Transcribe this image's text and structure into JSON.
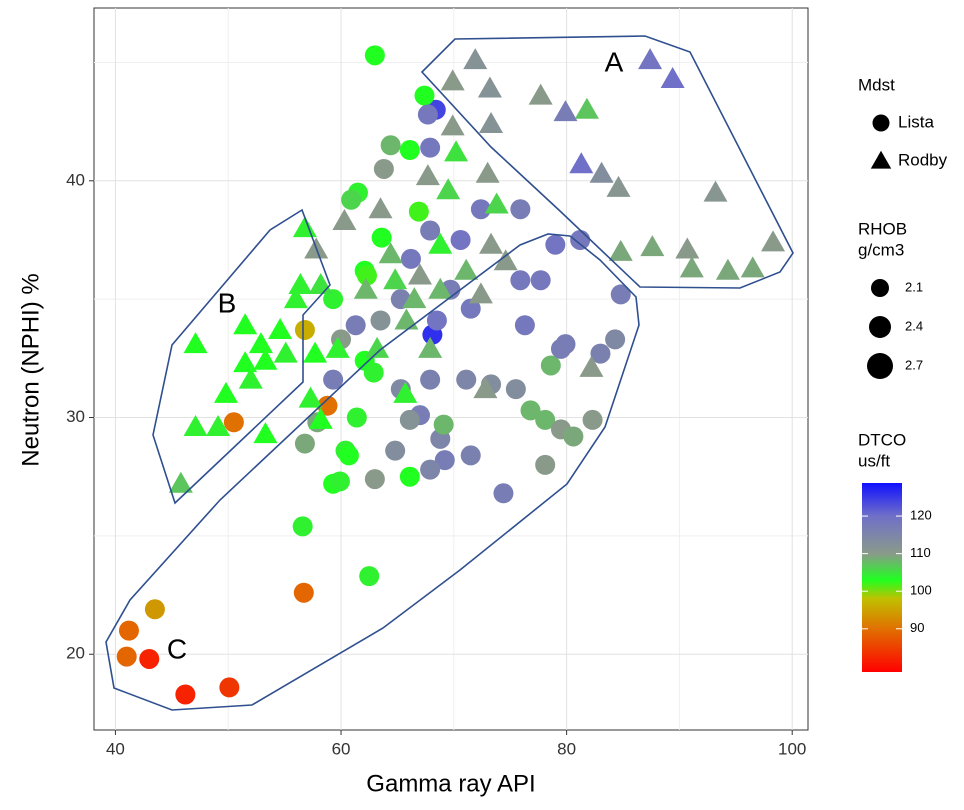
{
  "chart_data": {
    "type": "scatter",
    "x_label": "Gamma ray API",
    "y_label": "Neutron (NPHI) %",
    "xlim": [
      38.1,
      101.4
    ],
    "ylim": [
      16.8,
      47.3
    ],
    "xticks": [
      40,
      60,
      80,
      100
    ],
    "yticks": [
      20,
      30,
      40
    ],
    "x_minor_grid": [
      50,
      70,
      90
    ],
    "y_minor_grid": [
      25,
      35,
      45
    ],
    "grid": true,
    "shape_legend_title": "Mdst",
    "size_legend": {
      "title": [
        "RHOB",
        "g/cm3"
      ],
      "values": [
        2.1,
        2.4,
        2.7
      ]
    },
    "colorbar": {
      "title": [
        "DTCO",
        "us/ft"
      ],
      "lim": [
        78.5,
        128.8
      ],
      "ticks": [
        90,
        100,
        110,
        120
      ],
      "stops": [
        [
          78.5,
          "#ff0000"
        ],
        [
          90,
          "#e07000"
        ],
        [
          98,
          "#c0c000"
        ],
        [
          103,
          "#20ff20"
        ],
        [
          110,
          "#8a9a8a"
        ],
        [
          120,
          "#7070c8"
        ],
        [
          128.8,
          "#1010ff"
        ]
      ]
    },
    "annotations": [
      "A",
      "B",
      "C"
    ],
    "series": [
      {
        "name": "Lista",
        "shape": "circle",
        "x": [
          63.0,
          68.4,
          67.4,
          67.7,
          66.1,
          67.9,
          64.4,
          63.8,
          61.5,
          60.9,
          66.9,
          63.6,
          62.1,
          62.3,
          59.3,
          61.3,
          63.5,
          68.1,
          68.5,
          60.0,
          62.1,
          62.9,
          59.3,
          56.8,
          58.8,
          57.9,
          61.4,
          60.4,
          60.7,
          59.3,
          59.9,
          63.0,
          66.1,
          56.8,
          56.6,
          56.7,
          62.5,
          50.5,
          43.5,
          41.2,
          41.0,
          43.0,
          46.2,
          50.1,
          67.0,
          68.8,
          69.2,
          67.9,
          71.5,
          71.1,
          73.3,
          74.4,
          75.5,
          76.8,
          78.1,
          78.1,
          78.6,
          79.5,
          79.9,
          79.5,
          80.6,
          82.3,
          83.0,
          84.8,
          84.3,
          76.3,
          75.9,
          77.7,
          79.0,
          81.2,
          75.9,
          72.4,
          70.6,
          67.9,
          66.2,
          65.3,
          69.7,
          71.5,
          67.9,
          65.3,
          69.1,
          66.1,
          64.8
        ],
        "values": [
          45.3,
          43.0,
          43.6,
          42.8,
          41.3,
          41.4,
          41.5,
          40.5,
          39.5,
          39.2,
          38.7,
          37.6,
          36.2,
          36.0,
          35.0,
          33.9,
          34.1,
          33.5,
          34.1,
          33.3,
          32.4,
          31.9,
          31.6,
          33.7,
          30.5,
          29.8,
          30.0,
          28.6,
          28.4,
          27.2,
          27.3,
          27.4,
          27.5,
          28.9,
          25.4,
          22.6,
          23.3,
          29.8,
          21.9,
          21.0,
          19.9,
          19.8,
          18.3,
          18.6,
          30.1,
          29.1,
          28.2,
          27.8,
          28.4,
          31.6,
          31.4,
          26.8,
          31.2,
          30.3,
          29.9,
          28.0,
          32.2,
          32.9,
          33.1,
          29.5,
          29.2,
          29.9,
          32.7,
          35.2,
          33.3,
          33.9,
          35.8,
          35.8,
          37.3,
          37.5,
          38.8,
          38.8,
          37.5,
          37.9,
          36.7,
          35.0,
          35.4,
          34.6,
          31.6,
          31.2,
          29.7,
          29.9,
          28.6
        ],
        "dtco": [
          103,
          124,
          103,
          118,
          103,
          118,
          108,
          110,
          104,
          106,
          102,
          103,
          103,
          102,
          104,
          117,
          112,
          126,
          119,
          110,
          103,
          104,
          117,
          96,
          90,
          109,
          104,
          104,
          103,
          103,
          104,
          110,
          103,
          109,
          104,
          89,
          104,
          90,
          94,
          89,
          89,
          82,
          82,
          84,
          117,
          115,
          117,
          115,
          116,
          115,
          113,
          117,
          113,
          108,
          108,
          110,
          108,
          117,
          117,
          110,
          109,
          110,
          116,
          117,
          114,
          118,
          118,
          118,
          119,
          118,
          117,
          118,
          119,
          117,
          118,
          116,
          117,
          118,
          116,
          114,
          108,
          112,
          113
        ]
      },
      {
        "name": "Rodby",
        "shape": "triangle",
        "x": [
          71.9,
          69.9,
          73.2,
          77.7,
          79.9,
          81.8,
          73.3,
          69.9,
          87.4,
          89.4,
          81.3,
          83.1,
          84.6,
          93.2,
          84.8,
          87.6,
          90.7,
          91.1,
          94.3,
          96.5,
          98.3,
          70.2,
          67.7,
          69.5,
          73.0,
          73.8,
          56.8,
          57.8,
          60.3,
          63.5,
          64.4,
          67.0,
          68.8,
          71.1,
          72.4,
          73.3,
          74.6,
          56.4,
          58.2,
          62.2,
          64.8,
          66.5,
          68.8,
          63.2,
          59.7,
          57.7,
          65.8,
          67.9,
          72.8,
          65.7,
          58.2,
          57.3,
          51.5,
          52.9,
          54.6,
          56.0,
          52.0,
          53.3,
          55.1,
          51.5,
          49.8,
          47.1,
          47.1,
          49.1,
          53.3,
          45.8,
          82.2
        ],
        "values": [
          45.1,
          44.2,
          43.9,
          43.6,
          42.9,
          43.0,
          42.4,
          42.3,
          45.1,
          44.3,
          40.7,
          40.3,
          39.7,
          39.5,
          37.0,
          37.2,
          37.1,
          36.3,
          36.2,
          36.3,
          37.4,
          41.2,
          40.2,
          39.6,
          40.3,
          39.0,
          38.0,
          37.1,
          38.3,
          38.8,
          36.9,
          36.0,
          37.3,
          36.2,
          35.2,
          37.3,
          36.6,
          35.6,
          35.6,
          35.4,
          35.8,
          35.0,
          35.4,
          32.9,
          32.9,
          32.7,
          34.1,
          32.9,
          31.2,
          31.0,
          29.9,
          30.8,
          33.9,
          33.1,
          33.7,
          35.0,
          31.6,
          32.4,
          32.7,
          32.3,
          31.0,
          33.1,
          29.6,
          29.6,
          29.3,
          27.2,
          32.1
        ],
        "dtco": [
          112,
          110,
          112,
          110,
          117,
          107,
          112,
          110,
          119,
          120,
          120,
          113,
          111,
          111,
          109,
          109,
          110,
          109,
          109,
          109,
          110,
          105,
          110,
          106,
          110,
          106,
          104,
          110,
          110,
          110,
          108,
          110,
          104,
          108,
          110,
          110,
          110,
          104,
          105,
          108,
          106,
          108,
          108,
          106,
          104,
          103,
          108,
          108,
          110,
          104,
          103,
          104,
          103,
          103,
          103,
          104,
          104,
          103,
          104,
          103,
          103,
          103,
          104,
          104,
          103,
          107,
          110
        ]
      }
    ]
  }
}
